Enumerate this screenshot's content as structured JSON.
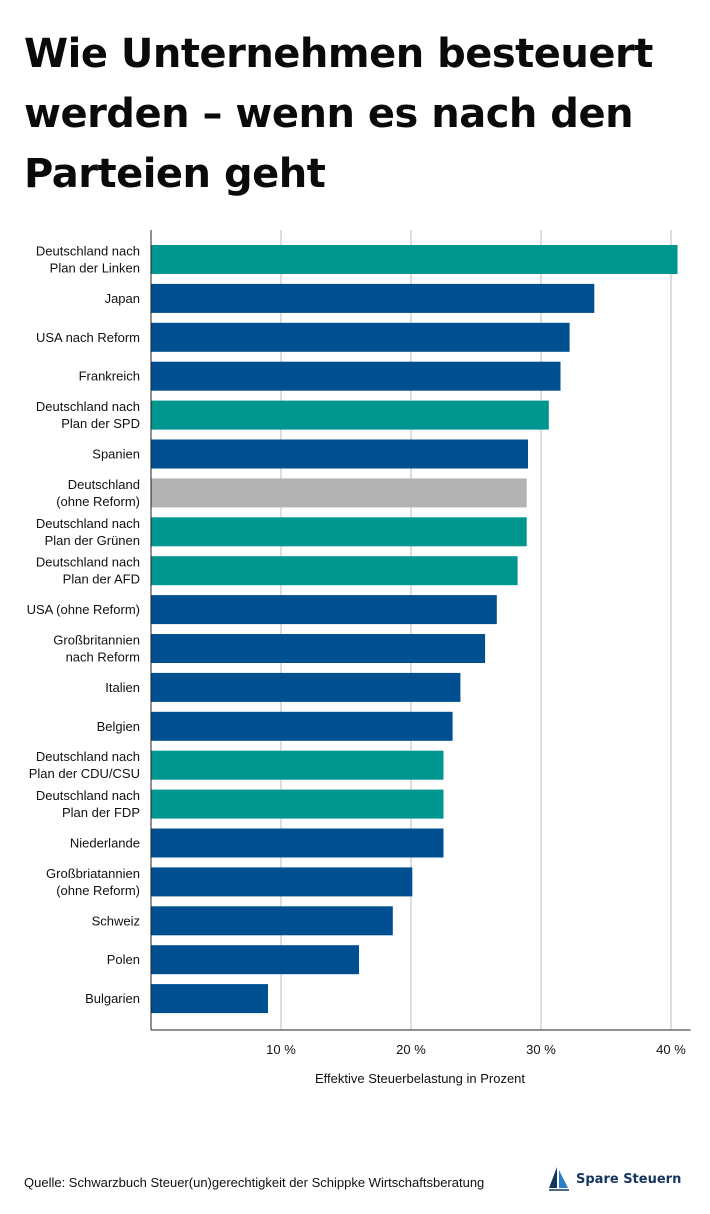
{
  "header": {
    "title": "Wie Unternehmen besteuert werden – wenn es nach den Parteien geht"
  },
  "colors": {
    "country": "#004f91",
    "party_plan": "#009690",
    "baseline": "#b3b3b3",
    "grid": "#bdbdbd"
  },
  "chart_data": {
    "type": "bar",
    "orientation": "horizontal",
    "title": "Wie Unternehmen besteuert werden – wenn es nach den Parteien geht",
    "xlabel": "Effektive Steuerbelastung in Prozent",
    "ylabel": "",
    "xlim": [
      0,
      41
    ],
    "xticks": [
      10,
      20,
      30,
      40
    ],
    "xtick_labels": [
      "10 %",
      "20 %",
      "30 %",
      "40 %"
    ],
    "grid": true,
    "categories": [
      [
        "Deutschland nach ",
        "Plan der Linken"
      ],
      [
        "Japan"
      ],
      [
        "USA nach Reform"
      ],
      [
        "Frankreich"
      ],
      [
        "Deutschland nach",
        "Plan der SPD"
      ],
      [
        "Spanien"
      ],
      [
        "Deutschland",
        "(ohne Reform)"
      ],
      [
        "Deutschland nach",
        "Plan der Grünen"
      ],
      [
        "Deutschland nach",
        "Plan der AFD"
      ],
      [
        "USA (ohne Reform)"
      ],
      [
        "Großbritannien",
        "nach Reform"
      ],
      [
        "Italien"
      ],
      [
        "Belgien"
      ],
      [
        "Deutschland nach",
        "Plan der CDU/CSU"
      ],
      [
        "Deutschland nach",
        "Plan der FDP"
      ],
      [
        "Niederlande"
      ],
      [
        "Großbriatannien",
        "(ohne Reform)"
      ],
      [
        "Schweiz"
      ],
      [
        "Polen"
      ],
      [
        "Bulgarien"
      ]
    ],
    "values": [
      40.5,
      34.1,
      32.2,
      31.5,
      30.6,
      29.0,
      28.9,
      28.9,
      28.2,
      26.6,
      25.7,
      23.8,
      23.2,
      22.5,
      22.5,
      22.5,
      20.1,
      18.6,
      16.0,
      9.0
    ],
    "groups": [
      "party_plan",
      "country",
      "country",
      "country",
      "party_plan",
      "country",
      "baseline",
      "party_plan",
      "party_plan",
      "country",
      "country",
      "country",
      "country",
      "party_plan",
      "party_plan",
      "country",
      "country",
      "country",
      "country",
      "country"
    ]
  },
  "footer": {
    "source": "Quelle: Schwarzbuch Steuer(un)gerechtigkeit der Schippke Wirtschaftsberatung",
    "brand": "Spare Steuern",
    "brand_icon": "sailboat-icon"
  }
}
